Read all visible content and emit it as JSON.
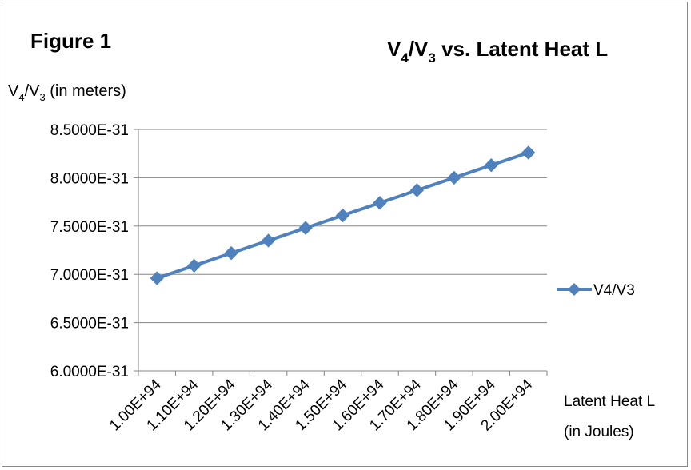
{
  "chart_data": {
    "type": "line",
    "figure_label": "Figure 1",
    "title": {
      "v4": "V",
      "sub4": "4",
      "slash": "/V",
      "sub3": "3",
      "rest": " vs. Latent Heat L"
    },
    "ylabel": {
      "v4": "V",
      "sub4": "4",
      "slash": "/V",
      "sub3": "3",
      "rest": " (in meters)"
    },
    "xlabel": {
      "line1": "Latent Heat L",
      "line2": "(in Joules)"
    },
    "categories": [
      "1.00E+94",
      "1.10E+94",
      "1.20E+94",
      "1.30E+94",
      "1.40E+94",
      "1.50E+94",
      "1.60E+94",
      "1.70E+94",
      "1.80E+94",
      "1.90E+94",
      "2.00E+94"
    ],
    "y_ticks": [
      "6.0000E-31",
      "6.5000E-31",
      "7.0000E-31",
      "7.5000E-31",
      "8.0000E-31",
      "8.5000E-31"
    ],
    "y_tick_values": [
      6.0,
      6.5,
      7.0,
      7.5,
      8.0,
      8.5
    ],
    "ylim": [
      6.0,
      8.5
    ],
    "y_unit_multiplier": "E-31",
    "series": [
      {
        "name": "V4/V3",
        "values": [
          6.96,
          7.09,
          7.22,
          7.35,
          7.48,
          7.61,
          7.74,
          7.87,
          8.0,
          8.13,
          8.26
        ],
        "color": "#4F81BD"
      }
    ],
    "grid": "horizontal",
    "legend_position": "right"
  }
}
